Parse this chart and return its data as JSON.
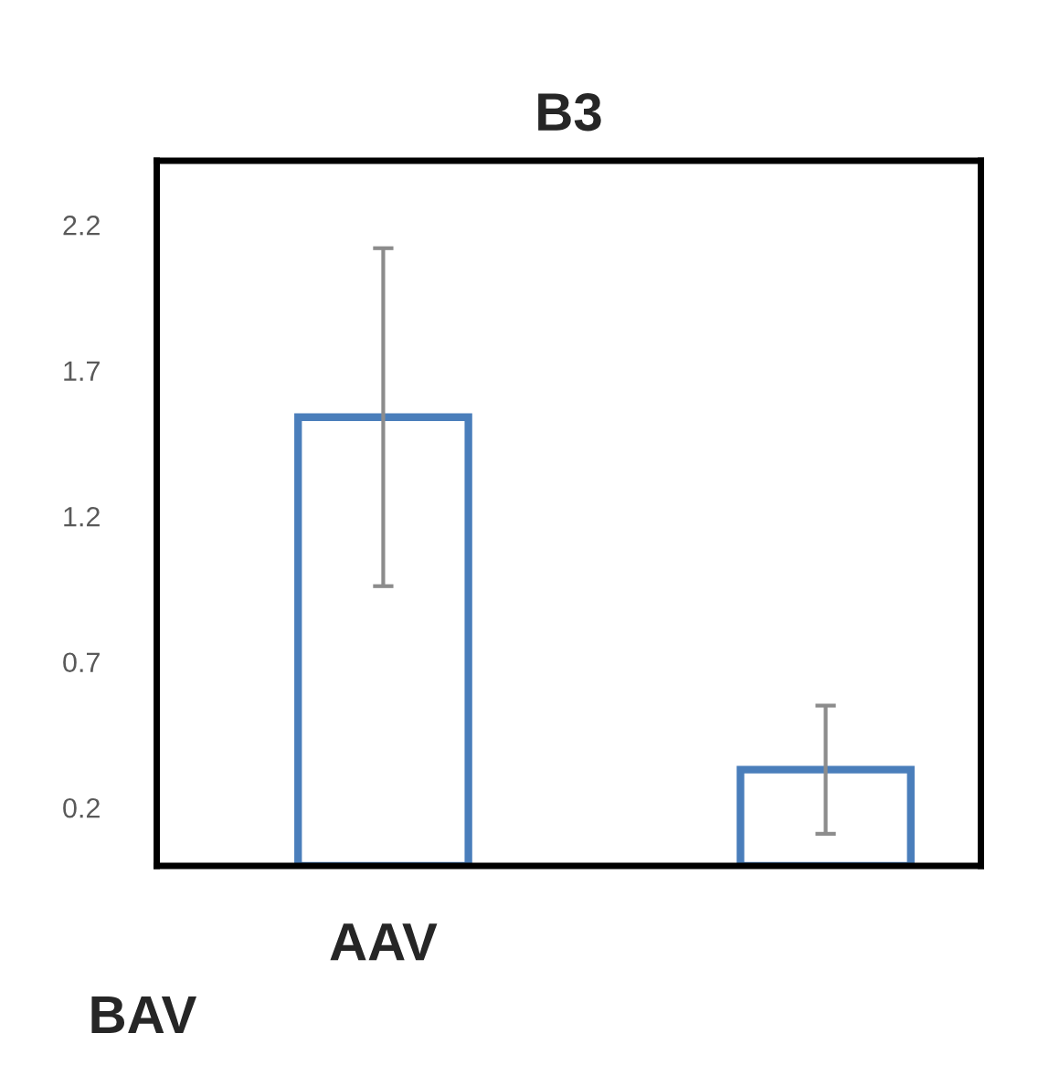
{
  "chart_data": {
    "type": "bar",
    "title": "B3",
    "categories": [
      "AAV",
      null
    ],
    "values": [
      1.54,
      0.33
    ],
    "errors": [
      0.58,
      0.22
    ],
    "color": "#4a7ebb",
    "ylim": [
      0,
      2.42
    ],
    "yticks": [
      0.2,
      0.7,
      1.2,
      1.7,
      2.2
    ],
    "grid": false,
    "annotations": [
      "BAV"
    ]
  }
}
